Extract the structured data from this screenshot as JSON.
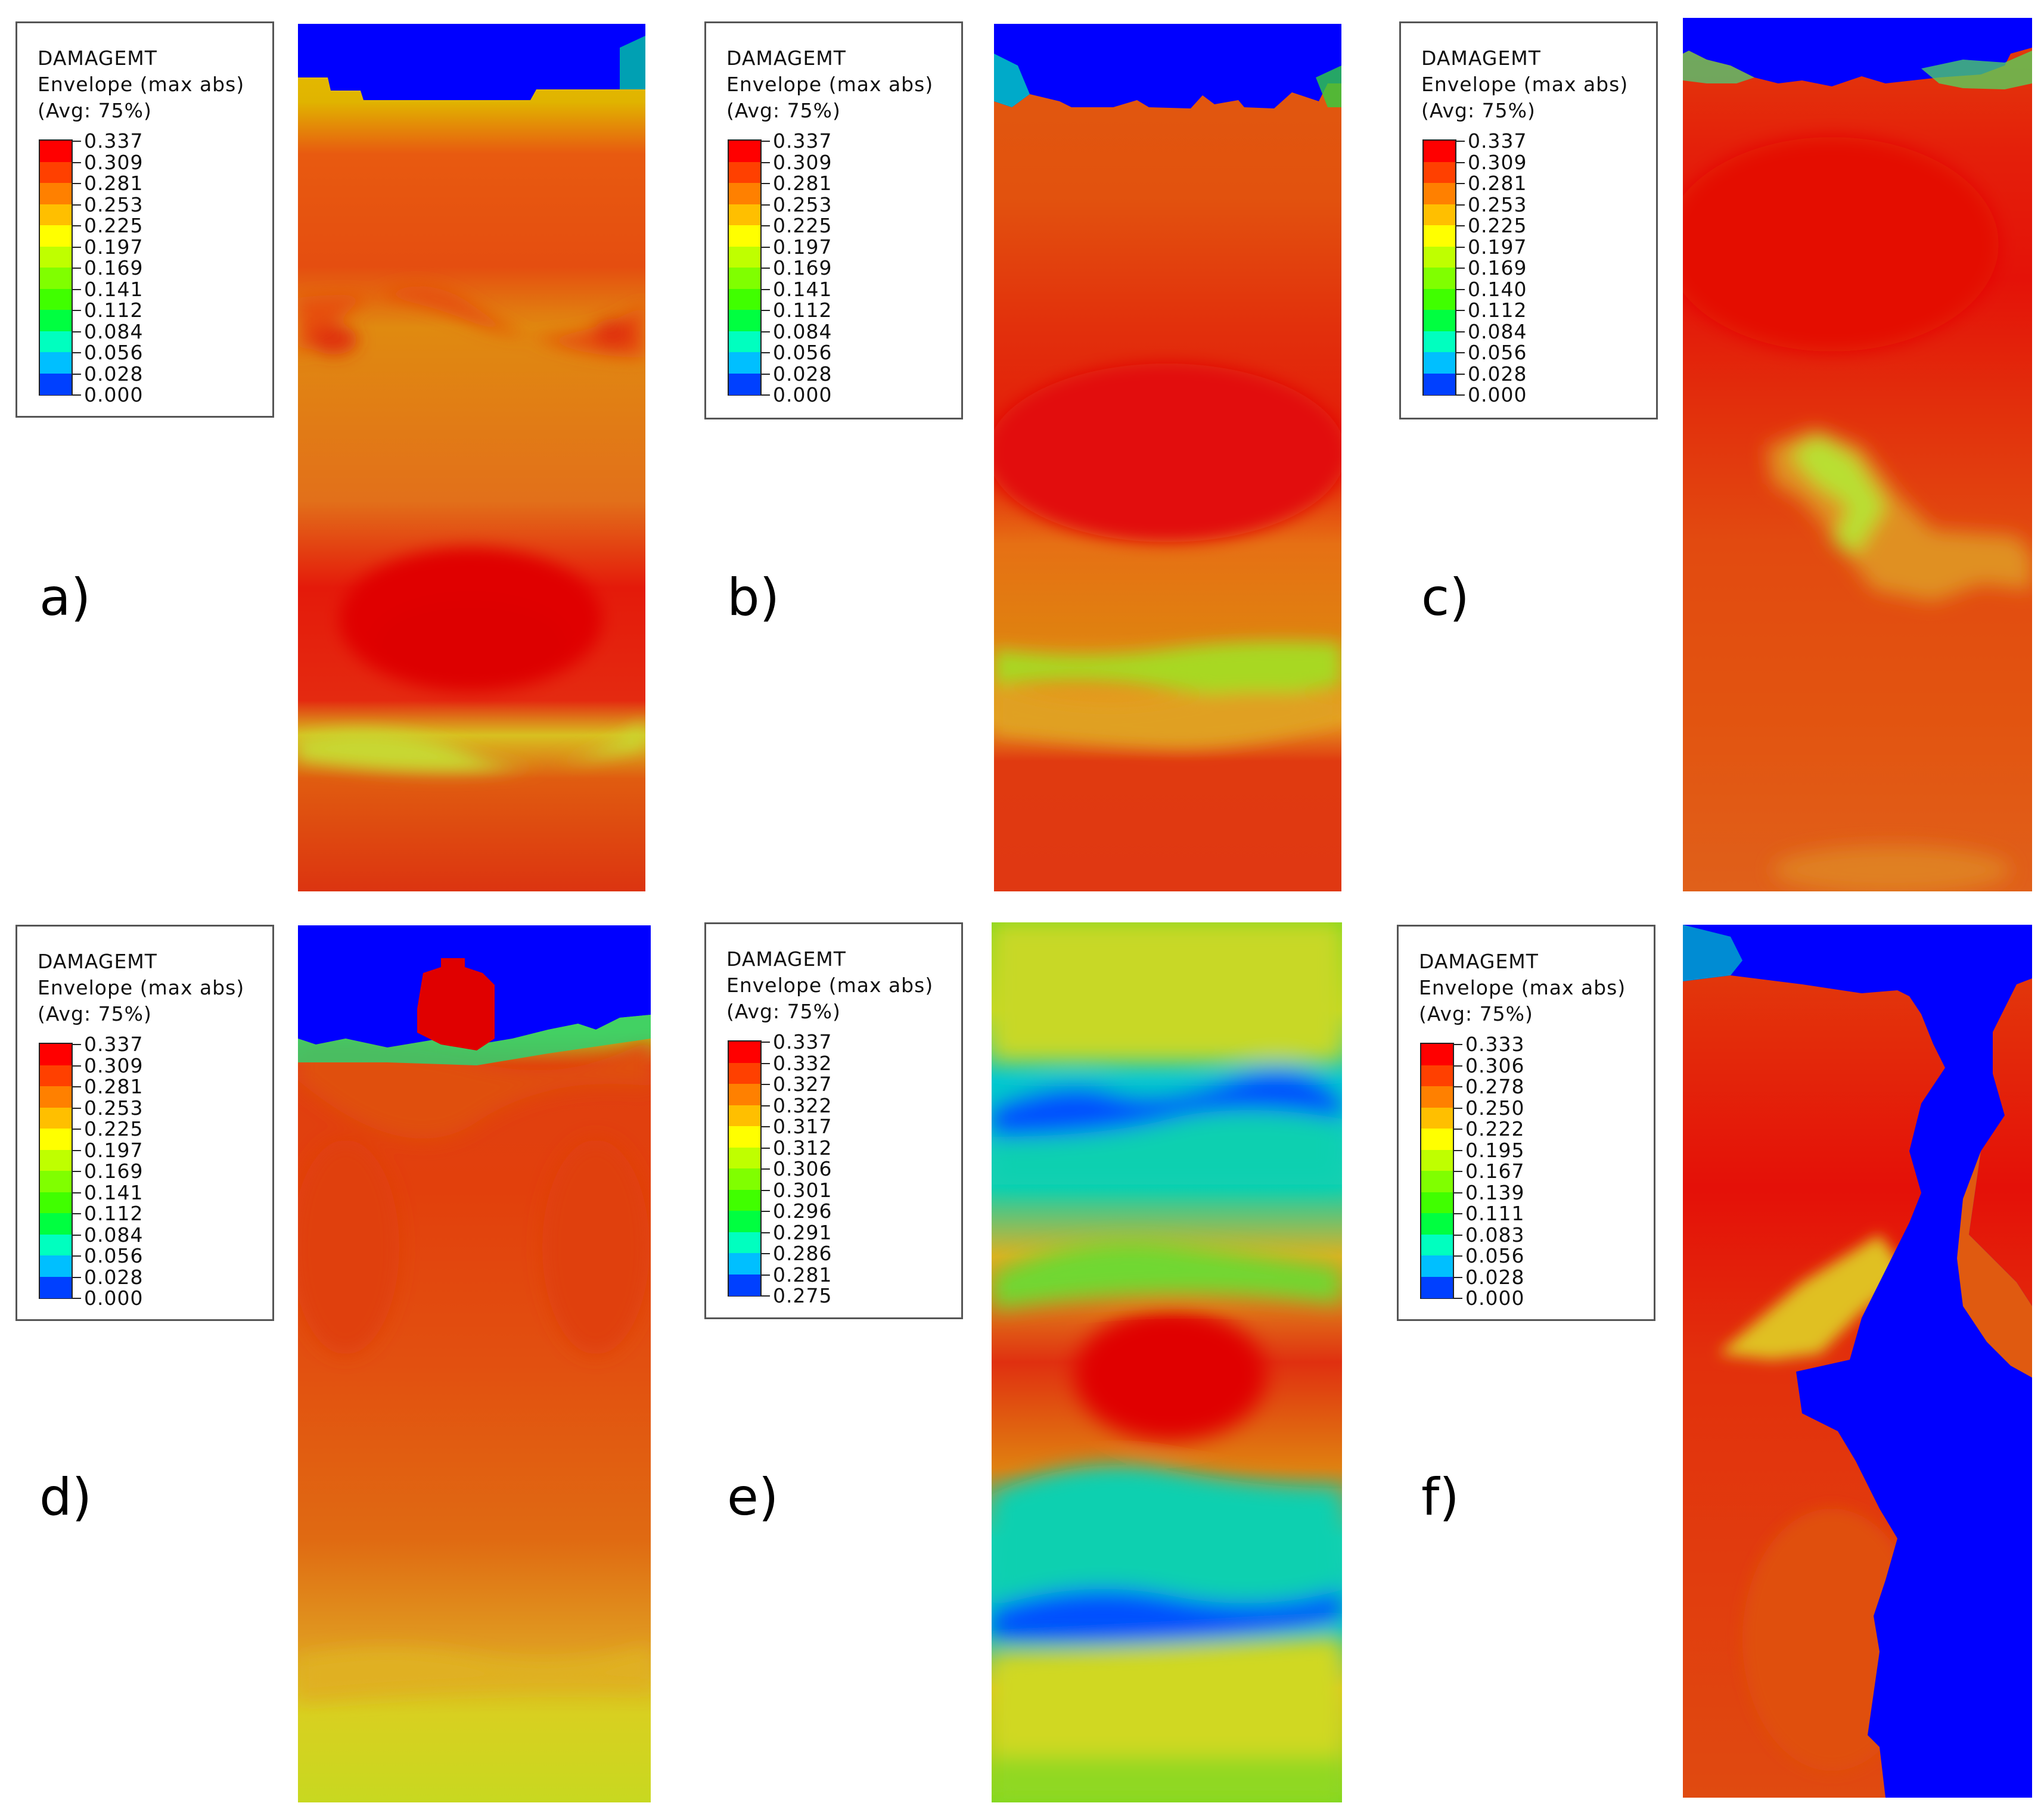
{
  "panels": [
    {
      "label": "a)",
      "legend": {
        "variable": "DAMAGEMT",
        "line2": "Envelope (max abs)",
        "line3": "(Avg: 75%)",
        "values": [
          "0.337",
          "0.309",
          "0.281",
          "0.253",
          "0.225",
          "0.197",
          "0.169",
          "0.141",
          "0.112",
          "0.084",
          "0.056",
          "0.028",
          "0.000"
        ]
      }
    },
    {
      "label": "b)",
      "legend": {
        "variable": "DAMAGEMT",
        "line2": "Envelope (max abs)",
        "line3": "(Avg: 75%)",
        "values": [
          "0.337",
          "0.309",
          "0.281",
          "0.253",
          "0.225",
          "0.197",
          "0.169",
          "0.141",
          "0.112",
          "0.084",
          "0.056",
          "0.028",
          "0.000"
        ]
      }
    },
    {
      "label": "c)",
      "legend": {
        "variable": "DAMAGEMT",
        "line2": "Envelope (max abs)",
        "line3": "(Avg: 75%)",
        "values": [
          "0.337",
          "0.309",
          "0.281",
          "0.253",
          "0.225",
          "0.197",
          "0.169",
          "0.140",
          "0.112",
          "0.084",
          "0.056",
          "0.028",
          "0.000"
        ]
      }
    },
    {
      "label": "d)",
      "legend": {
        "variable": "DAMAGEMT",
        "line2": "Envelope (max abs)",
        "line3": "(Avg: 75%)",
        "values": [
          "0.337",
          "0.309",
          "0.281",
          "0.253",
          "0.225",
          "0.197",
          "0.169",
          "0.141",
          "0.112",
          "0.084",
          "0.056",
          "0.028",
          "0.000"
        ]
      }
    },
    {
      "label": "e)",
      "legend": {
        "variable": "DAMAGEMT",
        "line2": "Envelope (max abs)",
        "line3": "(Avg: 75%)",
        "values": [
          "0.337",
          "0.332",
          "0.327",
          "0.322",
          "0.317",
          "0.312",
          "0.306",
          "0.301",
          "0.296",
          "0.291",
          "0.286",
          "0.281",
          "0.275"
        ]
      }
    },
    {
      "label": "f)",
      "legend": {
        "variable": "DAMAGEMT",
        "line2": "Envelope (max abs)",
        "line3": "(Avg: 75%)",
        "values": [
          "0.333",
          "0.306",
          "0.278",
          "0.250",
          "0.222",
          "0.195",
          "0.167",
          "0.139",
          "0.111",
          "0.083",
          "0.056",
          "0.028",
          "0.000"
        ]
      }
    }
  ],
  "colormap": [
    "#ff0000",
    "#ff4000",
    "#ff8000",
    "#ffbf00",
    "#ffff00",
    "#bfff00",
    "#80ff00",
    "#40ff00",
    "#00ff40",
    "#00ffbf",
    "#00bfff",
    "#0040ff",
    "#0000ff"
  ]
}
